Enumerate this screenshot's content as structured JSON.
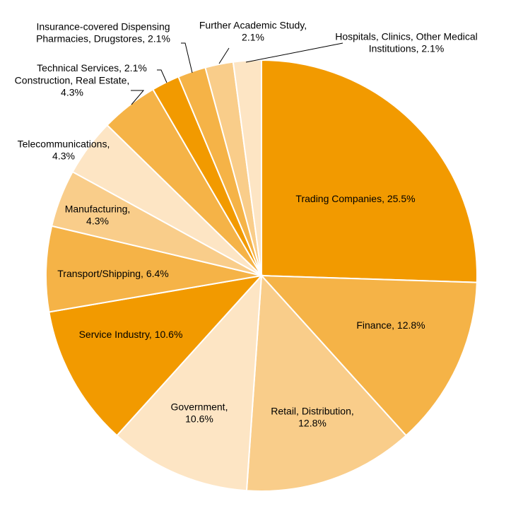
{
  "chart_data": {
    "type": "pie",
    "start_angle_deg": 0,
    "direction": "clockwise",
    "slices": [
      {
        "label_lines": [
          "Trading Companies, 25.5%"
        ],
        "value": 25.5,
        "color": "#f29a00"
      },
      {
        "label_lines": [
          "Finance, 12.8%"
        ],
        "value": 12.8,
        "color": "#f5b347"
      },
      {
        "label_lines": [
          "Retail, Distribution,",
          "12.8%"
        ],
        "value": 12.8,
        "color": "#f9cd8a"
      },
      {
        "label_lines": [
          "Government,",
          "10.6%"
        ],
        "value": 10.6,
        "color": "#fde5c4"
      },
      {
        "label_lines": [
          "Service Industry,  10.6%"
        ],
        "value": 10.6,
        "color": "#f29a00"
      },
      {
        "label_lines": [
          "Transport/Shipping,  6.4%"
        ],
        "value": 6.4,
        "color": "#f5b347"
      },
      {
        "label_lines": [
          "Manufacturing,",
          "4.3%"
        ],
        "value": 4.3,
        "color": "#f9cd8a"
      },
      {
        "label_lines": [
          "Telecommunications,",
          "4.3%"
        ],
        "value": 4.3,
        "color": "#fde5c4"
      },
      {
        "label_lines": [
          "Construction,  Real Estate,",
          "4.3%"
        ],
        "value": 4.3,
        "color": "#f5b347"
      },
      {
        "label_lines": [
          "Technical Services, 2.1%"
        ],
        "value": 2.1,
        "color": "#f29a00"
      },
      {
        "label_lines": [
          "Insurance-covered  Dispensing",
          "Pharmacies, Drugstores, 2.1%"
        ],
        "value": 2.1,
        "color": "#f5b347"
      },
      {
        "label_lines": [
          "Further Academic Study,",
          "2.1%"
        ],
        "value": 2.1,
        "color": "#f9cd8a"
      },
      {
        "label_lines": [
          "Hospitals,  Clinics,  Other Medical",
          "Institutions,  2.1%"
        ],
        "value": 2.1,
        "color": "#fde5c4"
      }
    ]
  }
}
